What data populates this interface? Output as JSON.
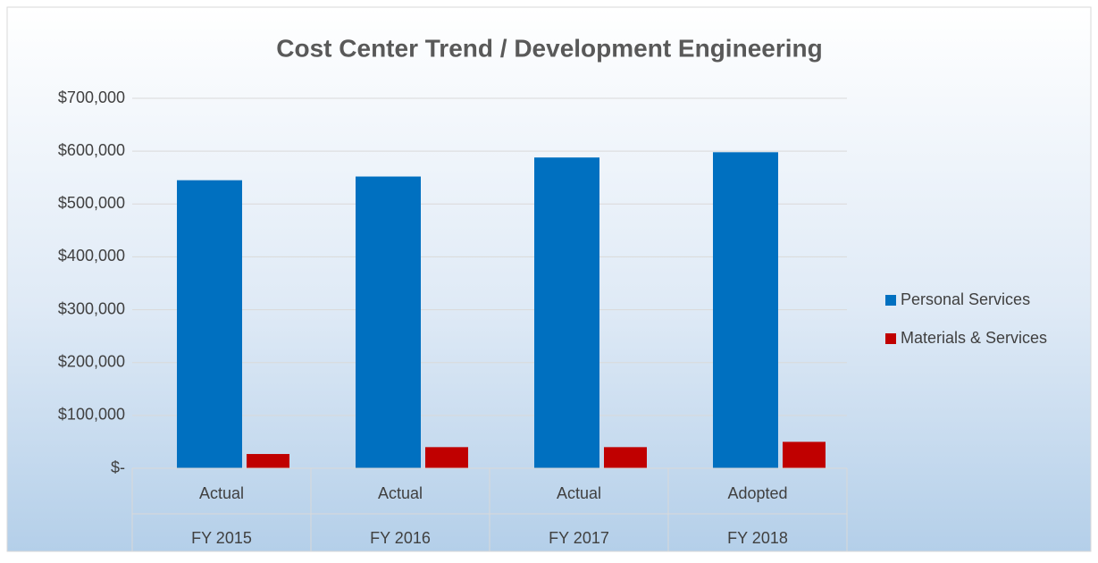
{
  "chart_data": {
    "type": "bar",
    "title": "Cost Center Trend / Development Engineering",
    "categories": [
      "Actual",
      "Actual",
      "Actual",
      "Adopted"
    ],
    "category_groups": [
      "FY 2015",
      "FY 2016",
      "FY 2017",
      "FY 2018"
    ],
    "series": [
      {
        "name": "Personal Services",
        "color": "#0070c0",
        "values": [
          545000,
          552000,
          588000,
          598000
        ]
      },
      {
        "name": "Materials & Services",
        "color": "#c00000",
        "values": [
          27000,
          40000,
          40000,
          50000
        ]
      }
    ],
    "ylim": [
      0,
      700000
    ],
    "yticks": [
      {
        "value": 0,
        "label": "$-"
      },
      {
        "value": 100000,
        "label": "$100,000"
      },
      {
        "value": 200000,
        "label": "$200,000"
      },
      {
        "value": 300000,
        "label": "$300,000"
      },
      {
        "value": 400000,
        "label": "$400,000"
      },
      {
        "value": 500000,
        "label": "$500,000"
      },
      {
        "value": 600000,
        "label": "$600,000"
      },
      {
        "value": 700000,
        "label": "$700,000"
      }
    ],
    "grid": true,
    "legend": "right"
  }
}
